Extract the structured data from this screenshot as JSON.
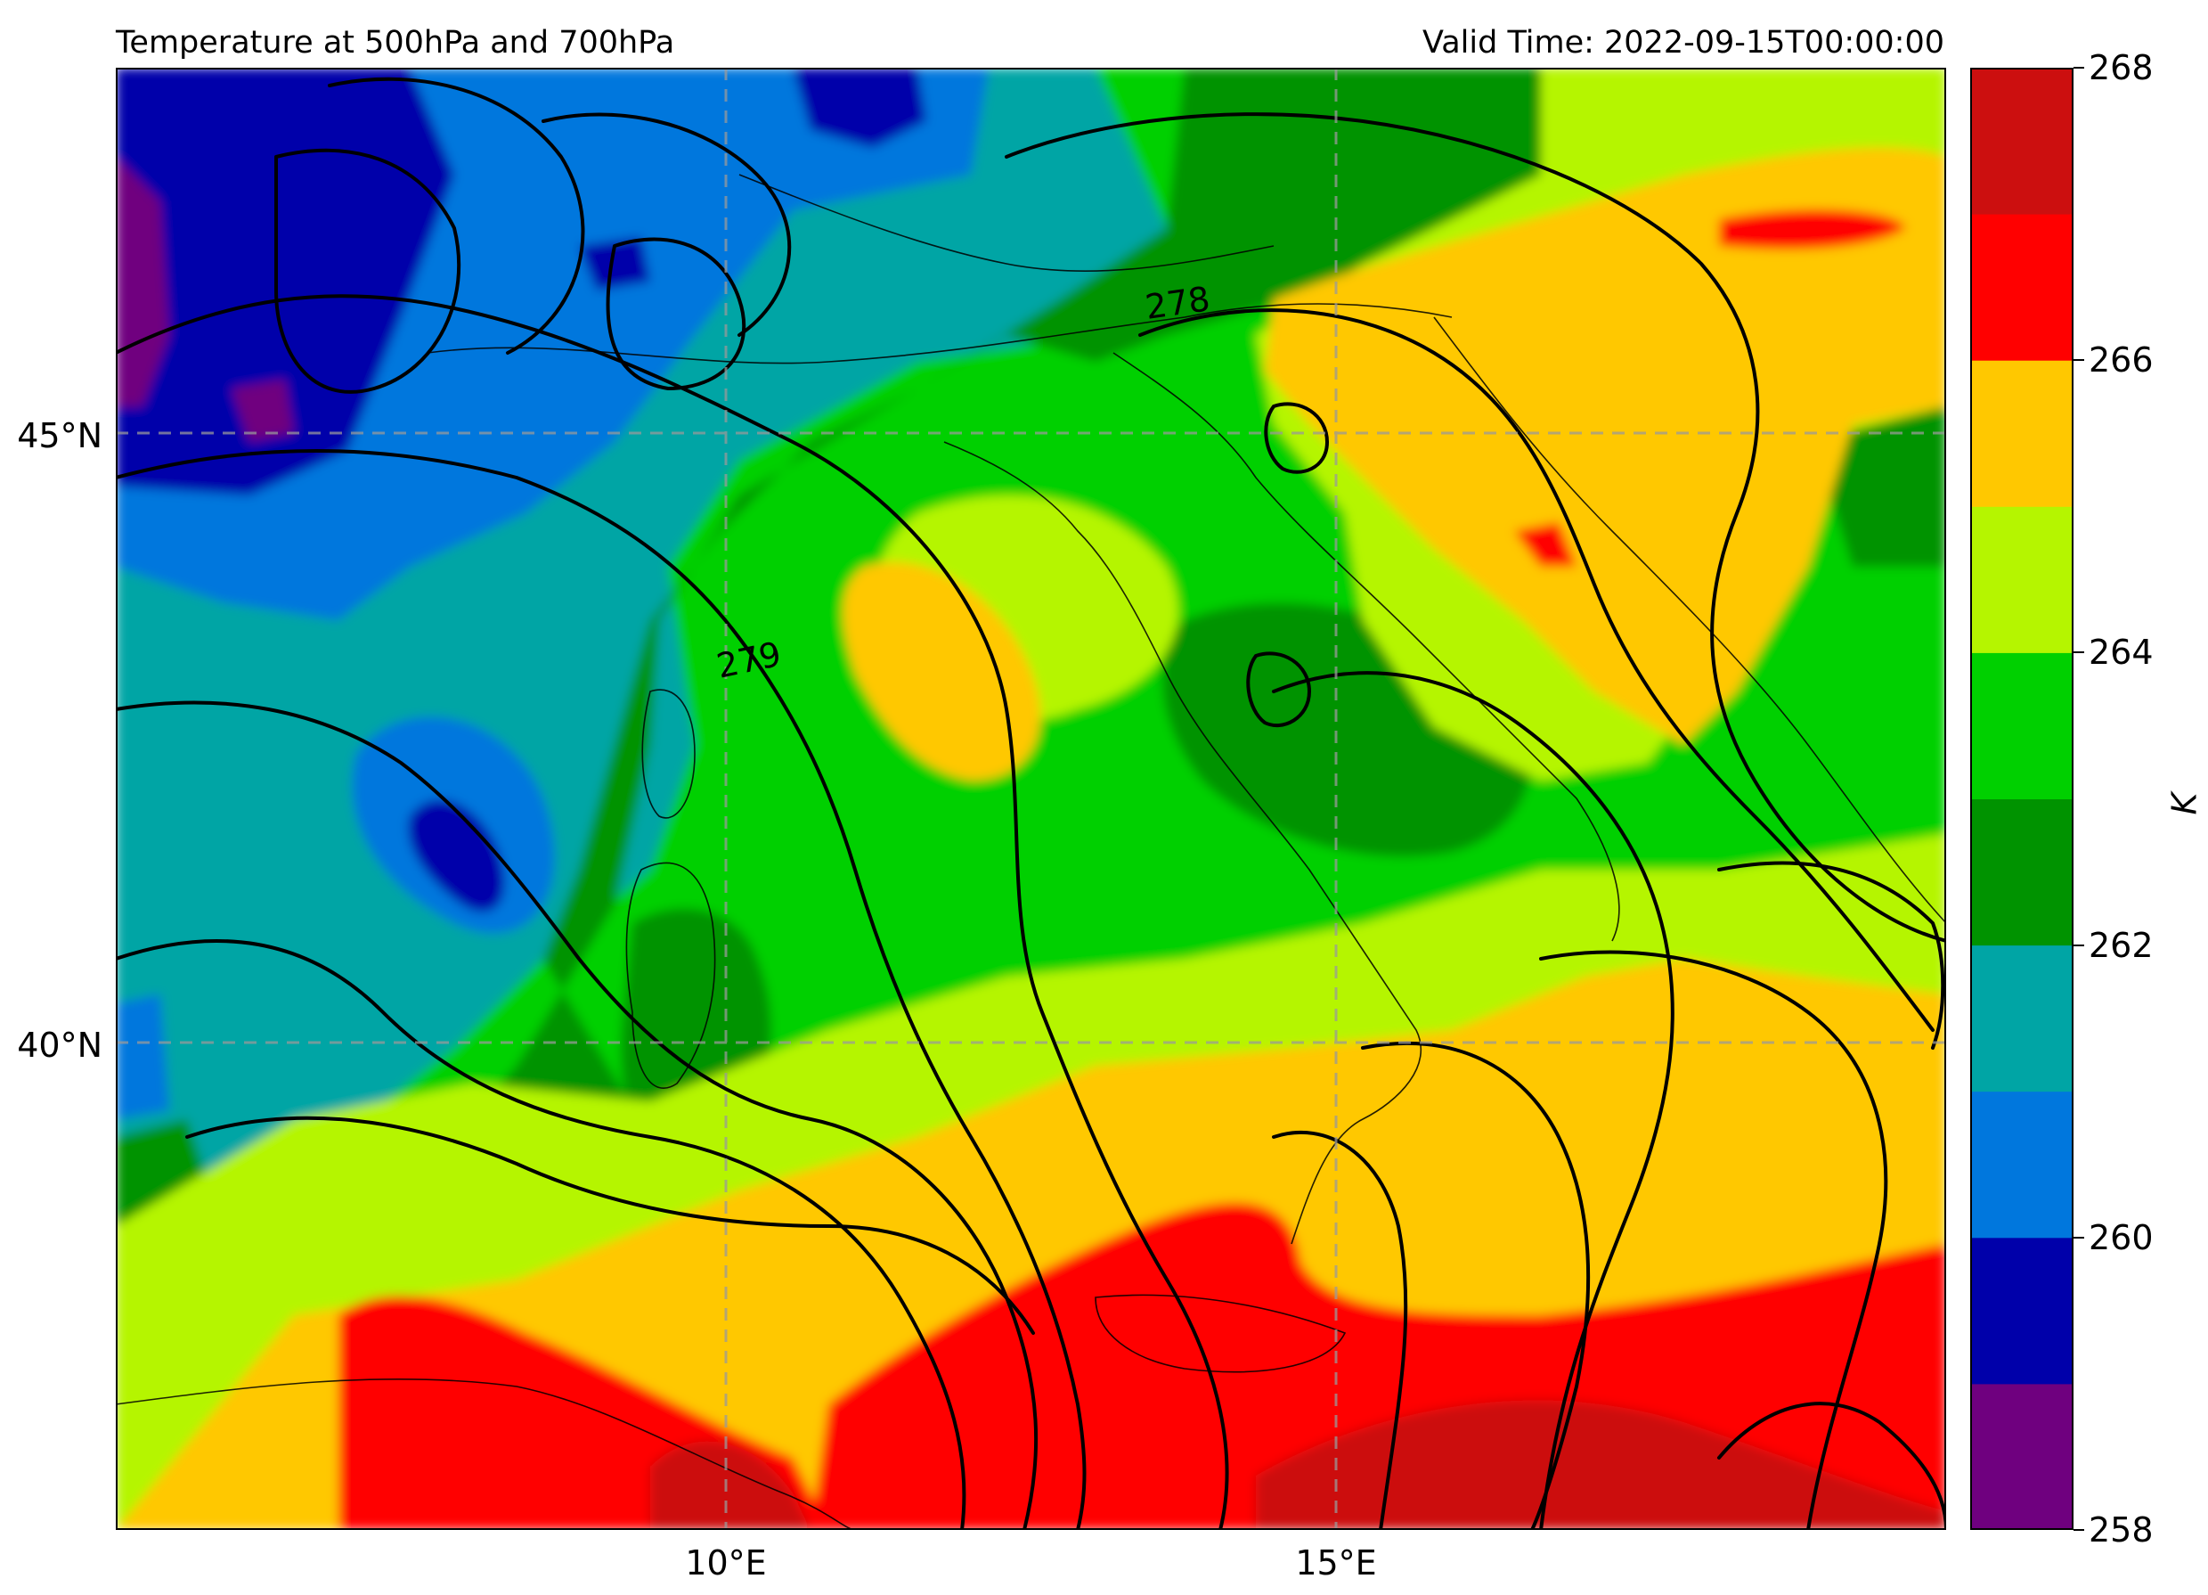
{
  "header": {
    "title": "Temperature at 500hPa and 700hPa",
    "valid_time": "Valid Time: 2022-09-15T00:00:00"
  },
  "map": {
    "projection": "lat-lon",
    "region": "Central Mediterranean / Italy",
    "lat_range": [
      36,
      48
    ],
    "lon_range": [
      5,
      20
    ],
    "gridlines": true,
    "lat_labels": [
      "45°N",
      "40°N"
    ],
    "lon_labels": [
      "10°E",
      "15°E"
    ],
    "contour_labels": [
      "278",
      "279"
    ],
    "filled_field": "500hPa temperature (K)",
    "contour_field": "700hPa temperature"
  },
  "colorbar": {
    "label": "K",
    "ticks": [
      "258",
      "260",
      "262",
      "264",
      "266",
      "268"
    ],
    "levels": [
      258,
      259,
      260,
      261,
      262,
      263,
      264,
      265,
      266,
      267,
      268
    ],
    "colors": [
      "#6f007f",
      "#0000aa",
      "#0077dd",
      "#00a5a5",
      "#009300",
      "#00d000",
      "#b5f500",
      "#ffc800",
      "#ff0000",
      "#cc0f0f"
    ]
  }
}
